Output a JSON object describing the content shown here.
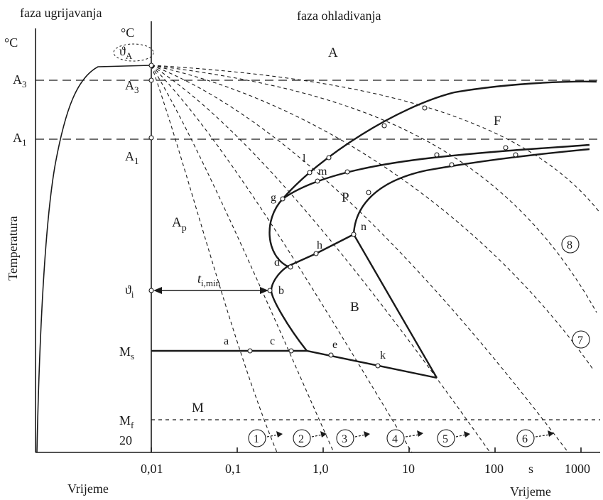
{
  "headings": {
    "heating": "faza ugrijavanja",
    "cooling": "faza ohladivanja"
  },
  "left_axis": {
    "unit": "°C",
    "A3": "A",
    "A3_sub": "3",
    "A1": "A",
    "A1_sub": "1",
    "title": "Temperatura",
    "bottom_label": "Vrijeme"
  },
  "mid_axis": {
    "unit": "°C",
    "theta_A": "ϑ",
    "theta_A_sub": "A",
    "A3": "A",
    "A3_sub": "3",
    "A1": "A",
    "A1_sub": "1",
    "theta_i": "ϑ",
    "theta_i_sub": "i",
    "Ms": "M",
    "Ms_sub": "s",
    "Mf": "M",
    "Mf_sub": "f",
    "twenty": "20"
  },
  "time_axis": {
    "ticks": [
      "0,01",
      "0,1",
      "1,0",
      "10",
      "100",
      "1000"
    ],
    "unit": "s",
    "title": "Vrijeme"
  },
  "regions": {
    "A": "A",
    "F": "F",
    "P": "P",
    "Ap": "A",
    "Ap_sub": "p",
    "B": "B",
    "M": "M"
  },
  "t_min": {
    "t": "t",
    "sub": "i,min"
  },
  "points": [
    "l",
    "m",
    "g",
    "n",
    "h",
    "d",
    "b",
    "a",
    "c",
    "e",
    "k"
  ],
  "curve_numbers": [
    "1",
    "2",
    "3",
    "4",
    "5",
    "6",
    "7",
    "8"
  ]
}
